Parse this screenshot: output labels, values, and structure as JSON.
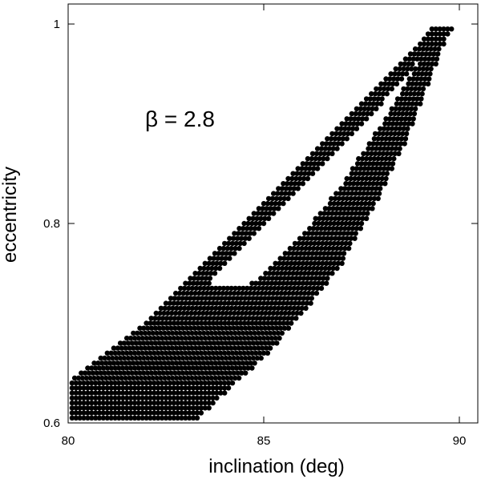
{
  "chart_data": {
    "type": "scatter",
    "xlabel": "inclination (deg)",
    "ylabel": "eccentricity",
    "xlim": [
      79.9,
      90.5
    ],
    "ylim": [
      0.6,
      1.02
    ],
    "xticks": [
      80,
      85,
      90
    ],
    "xtick_labels": [
      "80",
      "85",
      "90"
    ],
    "yticks": [
      0.6,
      0.8,
      1.0
    ],
    "ytick_labels": [
      "0.6",
      "0.8",
      "1"
    ],
    "grid": false,
    "annotation": "β = 2.8",
    "series": [
      {
        "region": "filled band of dots",
        "color": "#000000",
        "e_min": 0.6,
        "e_max": 0.995,
        "e_step": 0.005,
        "i_step": 0.1,
        "outer_upper_left_boundary": [
          [
            80.0,
            0.64
          ],
          [
            81.0,
            0.67
          ],
          [
            82.0,
            0.7
          ],
          [
            83.0,
            0.74
          ],
          [
            84.0,
            0.78
          ],
          [
            85.0,
            0.82
          ],
          [
            86.0,
            0.86
          ],
          [
            87.0,
            0.9
          ],
          [
            88.0,
            0.94
          ],
          [
            89.0,
            0.98
          ],
          [
            89.3,
            0.995
          ]
        ],
        "outer_lower_right_boundary": [
          [
            83.2,
            0.6
          ],
          [
            84.0,
            0.63
          ],
          [
            85.0,
            0.665
          ],
          [
            86.0,
            0.71
          ],
          [
            87.0,
            0.76
          ],
          [
            88.0,
            0.83
          ],
          [
            88.6,
            0.88
          ],
          [
            89.0,
            0.92
          ],
          [
            89.4,
            0.96
          ],
          [
            89.8,
            0.995
          ]
        ],
        "hole_lower_edge": [
          [
            84.0,
            0.72
          ],
          [
            85.0,
            0.75
          ],
          [
            86.0,
            0.79
          ],
          [
            87.0,
            0.84
          ],
          [
            88.0,
            0.9
          ],
          [
            88.6,
            0.94
          ],
          [
            89.2,
            0.98
          ]
        ],
        "hole_upper_edge": [
          [
            83.6,
            0.74
          ],
          [
            84.0,
            0.76
          ],
          [
            85.0,
            0.8
          ],
          [
            86.0,
            0.84
          ],
          [
            87.0,
            0.88
          ],
          [
            88.0,
            0.92
          ],
          [
            89.0,
            0.965
          ],
          [
            89.2,
            0.98
          ]
        ]
      }
    ]
  }
}
